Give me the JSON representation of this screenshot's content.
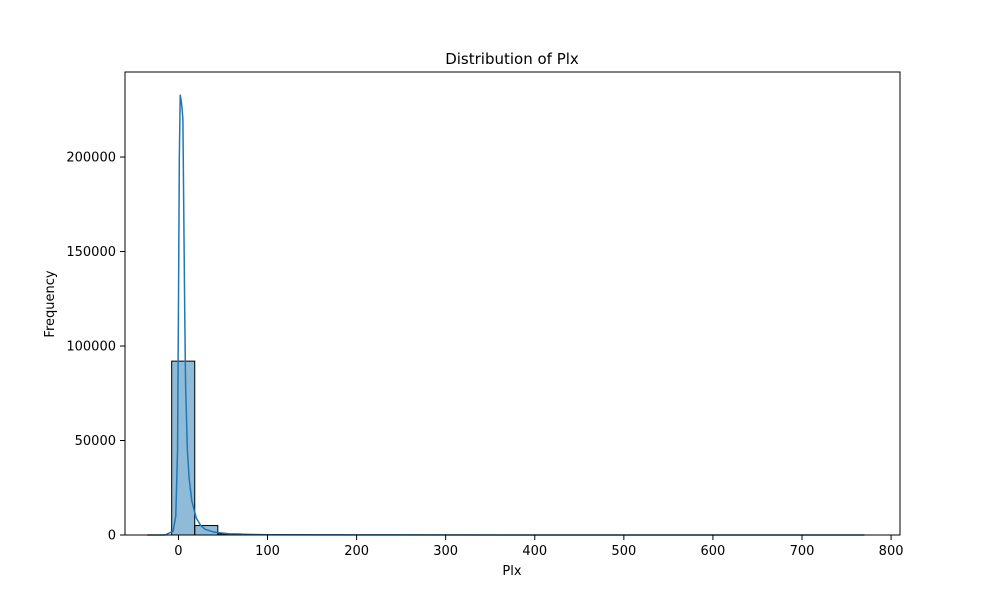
{
  "chart_data": {
    "type": "bar",
    "title": "Distribution of Plx",
    "xlabel": "Plx",
    "ylabel": "Frequency",
    "xlim": [
      -60,
      810
    ],
    "ylim": [
      0,
      245000
    ],
    "xticks": [
      0,
      100,
      200,
      300,
      400,
      500,
      600,
      700,
      800
    ],
    "yticks": [
      0,
      50000,
      100000,
      150000,
      200000
    ],
    "grid": false,
    "bar_color": "#1f77b4",
    "bar_fill_opacity": 0.5,
    "kde_color": "#1f77b4",
    "histogram": [
      {
        "x0": -7.6,
        "x1": 18.3,
        "value": 92000
      },
      {
        "x0": 18.3,
        "x1": 44.2,
        "value": 5000
      },
      {
        "x0": 44.2,
        "x1": 70.1,
        "value": 600
      },
      {
        "x0": 70.1,
        "x1": 96.0,
        "value": 200
      },
      {
        "x0": 96.0,
        "x1": 121.9,
        "value": 100
      }
    ],
    "kde": {
      "x": [
        -35,
        -15,
        -6,
        -3,
        -1,
        0,
        1,
        2,
        3,
        4,
        5,
        6,
        7,
        8,
        10,
        12,
        15,
        20,
        25,
        30,
        40,
        60,
        100,
        200,
        400,
        600,
        770
      ],
      "y": [
        0,
        0,
        2000,
        10000,
        45000,
        120000,
        200000,
        233000,
        230000,
        226000,
        220000,
        170000,
        120000,
        80000,
        45000,
        30000,
        18000,
        9000,
        5000,
        3000,
        1500,
        500,
        100,
        50,
        20,
        10,
        0
      ]
    }
  }
}
